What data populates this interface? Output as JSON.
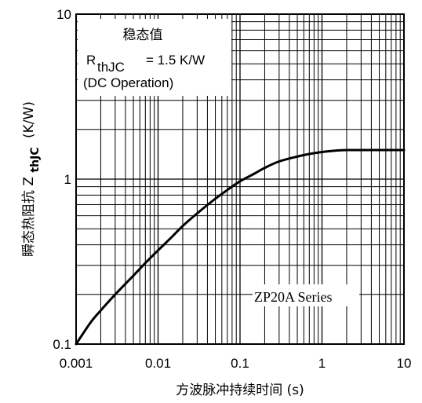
{
  "chart_data": {
    "type": "line",
    "xlabel": "方波脉冲持续时间 (s)",
    "ylabel_prefix": "瞬态热阻抗",
    "ylabel_symbol": "Z",
    "ylabel_subscript": "thJC",
    "ylabel_unit": "(K/W)",
    "x_scale": "log",
    "y_scale": "log",
    "xlim": [
      0.001,
      10
    ],
    "ylim": [
      0.1,
      10
    ],
    "x_ticks": [
      0.001,
      0.01,
      0.1,
      1,
      10
    ],
    "x_tick_labels": [
      "0.001",
      "0.01",
      "0.1",
      "1",
      "10"
    ],
    "y_ticks": [
      0.1,
      1,
      10
    ],
    "y_tick_labels": [
      "0.1",
      "1",
      "10"
    ],
    "grid": true,
    "series": [
      {
        "name": "ZP20A Series",
        "color": "#000000",
        "x": [
          0.001,
          0.0015,
          0.002,
          0.003,
          0.005,
          0.007,
          0.01,
          0.015,
          0.02,
          0.03,
          0.05,
          0.07,
          0.1,
          0.15,
          0.2,
          0.3,
          0.5,
          0.7,
          1,
          1.5,
          2,
          3,
          5,
          7,
          10
        ],
        "y": [
          0.1,
          0.135,
          0.16,
          0.2,
          0.26,
          0.31,
          0.37,
          0.45,
          0.52,
          0.62,
          0.76,
          0.86,
          0.97,
          1.08,
          1.17,
          1.28,
          1.37,
          1.42,
          1.46,
          1.49,
          1.5,
          1.5,
          1.5,
          1.5,
          1.5
        ]
      }
    ],
    "annotations": {
      "steady_title": "稳态值",
      "rth_symbol": "R",
      "rth_subscript": "thJC",
      "rth_value": "= 1.5 K/W",
      "rth_condition": "(DC Operation)",
      "series_label": "ZP20A Series"
    }
  }
}
